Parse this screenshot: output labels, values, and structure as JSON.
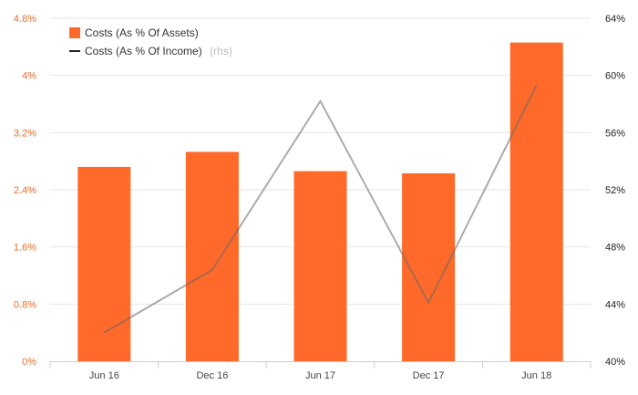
{
  "chart_data": {
    "type": "bar",
    "categories": [
      "Jun 16",
      "Dec 16",
      "Jun 17",
      "Dec 17",
      "Jun 18"
    ],
    "series": [
      {
        "name": "Costs (As % Of Assets)",
        "type": "bar",
        "axis": "left",
        "color": "#ff6a2a",
        "values": [
          2.72,
          2.93,
          2.66,
          2.63,
          4.46
        ]
      },
      {
        "name": "Costs (As % Of Income)",
        "type": "line",
        "axis": "right",
        "note": "(rhs)",
        "color": "#aaaaaa",
        "values": [
          42.0,
          46.4,
          58.2,
          44.1,
          59.3
        ]
      }
    ],
    "y_left": {
      "ylim": [
        0,
        4.8
      ],
      "ticks": [
        0,
        0.8,
        1.6,
        2.4,
        3.2,
        4,
        4.8
      ],
      "tick_labels": [
        "0%",
        "0.8%",
        "1.6%",
        "2.4%",
        "3.2%",
        "4%",
        "4.8%"
      ],
      "color": "#f26a2a"
    },
    "y_right": {
      "ylim": [
        40,
        64
      ],
      "ticks": [
        40,
        44,
        48,
        52,
        56,
        60,
        64
      ],
      "tick_labels": [
        "40%",
        "44%",
        "48%",
        "52%",
        "56%",
        "60%",
        "64%"
      ],
      "color": "#222222"
    },
    "grid": true,
    "legend": "top-left"
  }
}
